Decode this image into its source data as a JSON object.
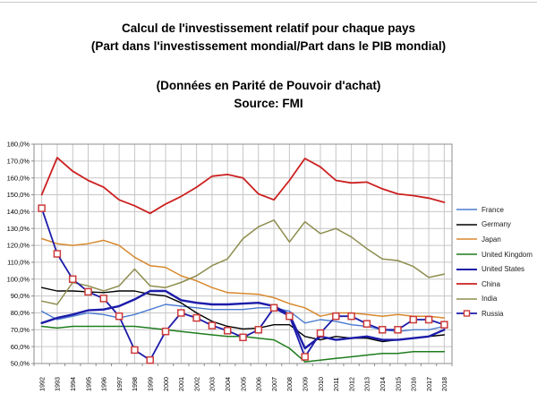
{
  "title": {
    "line1": "Calcul de l'investissement relatif pour chaque pays",
    "line2": "(Part dans l'investissement mondial/Part dans le PIB mondial)",
    "line3": "(Données en Parité de Pouvoir d'achat)",
    "line4": "Source: FMI"
  },
  "colors": {
    "grid": "#c6c6c6",
    "plot_border": "#8c8c8c",
    "tick_text": "#000000",
    "legend_text": "#1a1a1a"
  },
  "chart_data": {
    "type": "line",
    "title": "Calcul de l'investissement relatif pour chaque pays (Part dans l'investissement mondial/Part dans le PIB mondial)",
    "subtitle": "(Données en Parité de Pouvoir d'achat) — Source: FMI",
    "x": [
      1992,
      1993,
      1994,
      1995,
      1996,
      1997,
      1998,
      1999,
      2000,
      2001,
      2002,
      2003,
      2004,
      2005,
      2006,
      2007,
      2008,
      2009,
      2010,
      2011,
      2012,
      2013,
      2014,
      2015,
      2016,
      2017,
      2018
    ],
    "ylim": [
      50,
      180
    ],
    "ytick_step": 10,
    "ytick_format": "percent-comma-one-decimal",
    "grid": true,
    "legend_position": "right",
    "series": [
      {
        "name": "France",
        "color": "#4a7bd0",
        "width": 1.4,
        "values": [
          81,
          76,
          78,
          80,
          79,
          77,
          79,
          82,
          85,
          84,
          83,
          82,
          82,
          82,
          83,
          83,
          81,
          74,
          76,
          75,
          73,
          72,
          70,
          69,
          70,
          70,
          72
        ]
      },
      {
        "name": "Germany",
        "color": "#000000",
        "width": 1.4,
        "values": [
          95,
          93,
          93,
          92.5,
          92,
          93,
          93,
          91,
          90,
          86,
          80,
          75,
          72,
          70.5,
          71,
          73,
          73,
          66,
          64,
          66,
          65,
          65,
          63,
          64,
          65,
          66,
          67
        ]
      },
      {
        "name": "Japan",
        "color": "#d8892e",
        "width": 1.5,
        "values": [
          124,
          121,
          120,
          121,
          123,
          120,
          113,
          108,
          107,
          102,
          99,
          95,
          92,
          91.5,
          91,
          89,
          85.5,
          83,
          78,
          80,
          80,
          79,
          78,
          79,
          78,
          78,
          77
        ]
      },
      {
        "name": "United Kingdom",
        "color": "#1e7d1e",
        "width": 1.5,
        "values": [
          72,
          71,
          72,
          72,
          72,
          72,
          72,
          71,
          70,
          69,
          68,
          67,
          66,
          66,
          65,
          64,
          59,
          51,
          52,
          53,
          54,
          55,
          56,
          56,
          57,
          57,
          57
        ]
      },
      {
        "name": "United States",
        "color": "#1c1caa",
        "width": 2.4,
        "values": [
          74,
          77,
          79,
          81.5,
          82,
          84,
          88,
          93,
          93,
          87.5,
          86,
          85,
          85,
          85.5,
          86,
          84,
          79,
          59,
          66,
          64,
          65,
          66,
          64,
          64,
          65,
          66,
          70
        ]
      },
      {
        "name": "China",
        "color": "#cc2020",
        "width": 1.8,
        "values": [
          150,
          172,
          164,
          158.5,
          154.5,
          147,
          143.5,
          139,
          144.5,
          149,
          154.5,
          161,
          162,
          160,
          150.5,
          147,
          158.5,
          171.5,
          166.5,
          158.5,
          157,
          157.5,
          153.5,
          150.5,
          149.5,
          148,
          145.5
        ]
      },
      {
        "name": "India",
        "color": "#8d8d4e",
        "width": 1.5,
        "values": [
          87,
          85,
          98,
          96,
          93,
          96,
          106,
          96,
          95,
          98,
          102,
          108,
          112,
          124,
          131,
          135,
          122,
          134,
          127,
          130,
          125,
          118,
          112,
          111,
          107.5,
          101,
          103
        ]
      },
      {
        "name": "Russia",
        "color": "#1c1caa",
        "width": 1.8,
        "marker": {
          "shape": "square",
          "fill": "#ffffff",
          "stroke": "#cd3b3b",
          "size": 7
        },
        "values": [
          142,
          115,
          100,
          92.5,
          88.5,
          78,
          58,
          52,
          69,
          80,
          77,
          72.5,
          69.5,
          65.5,
          70,
          83,
          78,
          54,
          68,
          78,
          78,
          73.5,
          70,
          70,
          76,
          76,
          73
        ]
      }
    ]
  }
}
